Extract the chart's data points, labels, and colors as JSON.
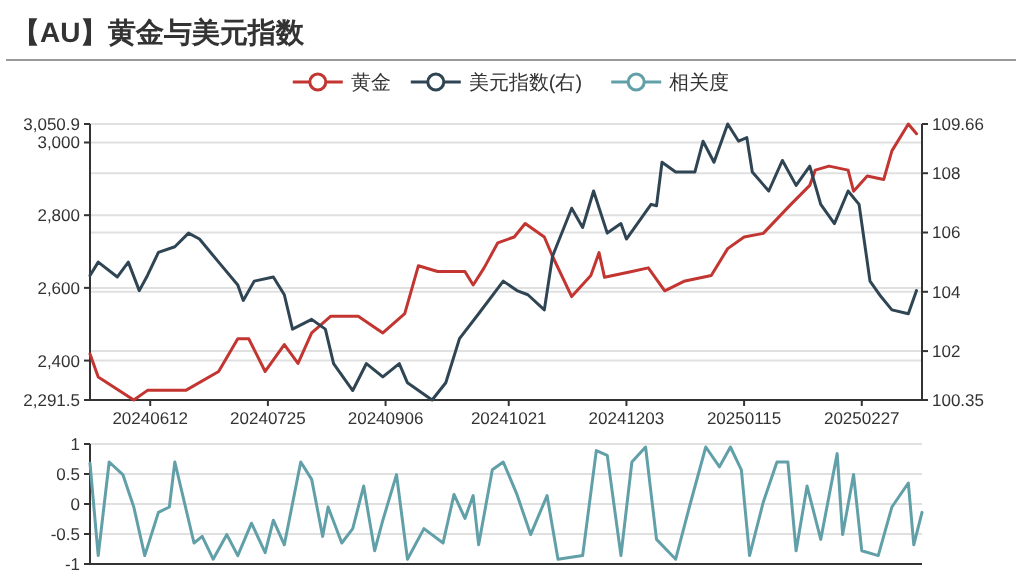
{
  "chart_data": [
    {
      "type": "line",
      "title": "【AU】黄金与美元指数",
      "legend": "top",
      "grid": "y",
      "xlim": [
        "2024-05-21",
        "2025-03-21"
      ],
      "xticks": [
        {
          "value": "2024-06-12",
          "label": "20240612"
        },
        {
          "value": "2024-07-25",
          "label": "20240725"
        },
        {
          "value": "2024-09-06",
          "label": "20240906"
        },
        {
          "value": "2024-10-21",
          "label": "20241021"
        },
        {
          "value": "2024-12-03",
          "label": "20241203"
        },
        {
          "value": "2025-01-15",
          "label": "20250115"
        },
        {
          "value": "2025-02-27",
          "label": "20250227"
        }
      ],
      "ylim": [
        2291.5,
        3050.9
      ],
      "yticks": [
        {
          "value": 2291.5,
          "label": "2,291.5"
        },
        {
          "value": 2400,
          "label": "2,400"
        },
        {
          "value": 2600,
          "label": "2,600"
        },
        {
          "value": 2800,
          "label": "2,800"
        },
        {
          "value": 3000,
          "label": "3,000"
        },
        {
          "value": 3050.9,
          "label": "3,050.9"
        }
      ],
      "y2lim": [
        100.35,
        109.66
      ],
      "y2ticks": [
        100.35,
        102,
        104,
        106,
        108,
        109.66
      ],
      "series": [
        {
          "name": "黄金",
          "color": "#c23531",
          "x": [
            "2024-05-21",
            "2024-05-24",
            "2024-06-06",
            "2024-06-11",
            "2024-06-25",
            "2024-07-07",
            "2024-07-14",
            "2024-07-18",
            "2024-07-24",
            "2024-07-31",
            "2024-08-05",
            "2024-08-10",
            "2024-08-17",
            "2024-08-27",
            "2024-09-05",
            "2024-09-13",
            "2024-09-18",
            "2024-09-25",
            "2024-10-05",
            "2024-10-08",
            "2024-10-12",
            "2024-10-17",
            "2024-10-23",
            "2024-10-27",
            "2024-11-03",
            "2024-11-06",
            "2024-11-13",
            "2024-11-20",
            "2024-11-23",
            "2024-11-25",
            "2024-12-05",
            "2024-12-11",
            "2024-12-17",
            "2024-12-24",
            "2025-01-03",
            "2025-01-09",
            "2025-01-15",
            "2025-01-22",
            "2025-02-01",
            "2025-02-08",
            "2025-02-10",
            "2025-02-15",
            "2025-02-22",
            "2025-02-24",
            "2025-03-01",
            "2025-03-07",
            "2025-03-10",
            "2025-03-16",
            "2025-03-19"
          ],
          "values": [
            2418,
            2355,
            2291.5,
            2318,
            2318,
            2370,
            2460,
            2460,
            2370,
            2444,
            2392,
            2476,
            2522,
            2522,
            2476,
            2529,
            2661,
            2645,
            2645,
            2608,
            2655,
            2724,
            2740,
            2777,
            2740,
            2687,
            2576,
            2634,
            2697,
            2629,
            2645,
            2655,
            2592,
            2618,
            2634,
            2708,
            2740,
            2750,
            2829,
            2882,
            2924,
            2935,
            2924,
            2866,
            2908,
            2898,
            2977,
            3050.9,
            3024
          ]
        },
        {
          "name": "美元指数(右)",
          "color": "#2f4554",
          "axis": "y2",
          "x": [
            "2024-05-21",
            "2024-05-24",
            "2024-05-31",
            "2024-06-04",
            "2024-06-08",
            "2024-06-11",
            "2024-06-15",
            "2024-06-21",
            "2024-06-26",
            "2024-06-30",
            "2024-07-07",
            "2024-07-14",
            "2024-07-16",
            "2024-07-20",
            "2024-07-27",
            "2024-07-31",
            "2024-08-03",
            "2024-08-10",
            "2024-08-15",
            "2024-08-18",
            "2024-08-25",
            "2024-08-30",
            "2024-09-05",
            "2024-09-11",
            "2024-09-14",
            "2024-09-23",
            "2024-09-28",
            "2024-10-03",
            "2024-10-10",
            "2024-10-19",
            "2024-10-24",
            "2024-10-28",
            "2024-11-03",
            "2024-11-06",
            "2024-11-13",
            "2024-11-17",
            "2024-11-21",
            "2024-11-26",
            "2024-12-01",
            "2024-12-03",
            "2024-12-12",
            "2024-12-14",
            "2024-12-16",
            "2024-12-21",
            "2024-12-28",
            "2024-12-31",
            "2025-01-04",
            "2025-01-09",
            "2025-01-13",
            "2025-01-16",
            "2025-01-18",
            "2025-01-24",
            "2025-01-29",
            "2025-02-03",
            "2025-02-08",
            "2025-02-12",
            "2025-02-17",
            "2025-02-22",
            "2025-02-26",
            "2025-03-02",
            "2025-03-06",
            "2025-03-10",
            "2025-03-16",
            "2025-03-19"
          ],
          "values": [
            104.55,
            105.0,
            104.5,
            105.0,
            104.04,
            104.55,
            105.33,
            105.52,
            105.98,
            105.78,
            105.0,
            104.23,
            103.71,
            104.36,
            104.5,
            103.9,
            102.74,
            103.07,
            102.74,
            101.58,
            100.67,
            101.58,
            101.13,
            101.58,
            100.93,
            100.35,
            100.93,
            102.42,
            103.26,
            104.36,
            104.04,
            103.9,
            103.39,
            105.2,
            106.82,
            106.17,
            107.4,
            105.98,
            106.3,
            105.78,
            106.95,
            106.9,
            108.37,
            108.04,
            108.04,
            109.08,
            108.37,
            109.66,
            109.08,
            109.2,
            108.04,
            107.4,
            108.43,
            107.59,
            108.24,
            106.95,
            106.3,
            107.4,
            106.95,
            104.36,
            103.84,
            103.39,
            103.26,
            104.04
          ]
        }
      ]
    },
    {
      "type": "line",
      "legend": "top",
      "grid": "y",
      "tick_labels": "y",
      "xlim": [
        "2024-05-21",
        "2025-03-21"
      ],
      "ylim": [
        -1,
        1
      ],
      "yticks": [
        -1,
        -0.5,
        0,
        0.5,
        1
      ],
      "series": [
        {
          "name": "相关度",
          "color": "#61a0a8",
          "x": [
            "2024-05-21",
            "2024-05-24",
            "2024-05-28",
            "2024-06-02",
            "2024-06-06",
            "2024-06-10",
            "2024-06-15",
            "2024-06-19",
            "2024-06-21",
            "2024-06-28",
            "2024-07-01",
            "2024-07-05",
            "2024-07-10",
            "2024-07-14",
            "2024-07-19",
            "2024-07-24",
            "2024-07-27",
            "2024-07-31",
            "2024-08-06",
            "2024-08-10",
            "2024-08-14",
            "2024-08-16",
            "2024-08-21",
            "2024-08-25",
            "2024-08-29",
            "2024-09-02",
            "2024-09-05",
            "2024-09-10",
            "2024-09-14",
            "2024-09-20",
            "2024-09-27",
            "2024-10-01",
            "2024-10-05",
            "2024-10-08",
            "2024-10-10",
            "2024-10-15",
            "2024-10-19",
            "2024-10-24",
            "2024-10-29",
            "2024-11-04",
            "2024-11-08",
            "2024-11-17",
            "2024-11-22",
            "2024-11-26",
            "2024-12-01",
            "2024-12-05",
            "2024-12-10",
            "2024-12-14",
            "2024-12-21",
            "2024-12-26",
            "2025-01-01",
            "2025-01-06",
            "2025-01-10",
            "2025-01-14",
            "2025-01-17",
            "2025-01-22",
            "2025-01-27",
            "2025-01-31",
            "2025-02-03",
            "2025-02-07",
            "2025-02-12",
            "2025-02-18",
            "2025-02-20",
            "2025-02-24",
            "2025-02-27",
            "2025-03-05",
            "2025-03-10",
            "2025-03-16",
            "2025-03-18",
            "2025-03-21"
          ],
          "values": [
            0.68,
            -0.86,
            0.7,
            0.49,
            -0.05,
            -0.86,
            -0.14,
            -0.05,
            0.7,
            -0.65,
            -0.54,
            -0.92,
            -0.51,
            -0.86,
            -0.32,
            -0.81,
            -0.27,
            -0.68,
            0.7,
            0.41,
            -0.54,
            -0.05,
            -0.65,
            -0.41,
            0.3,
            -0.78,
            -0.27,
            0.49,
            -0.92,
            -0.41,
            -0.65,
            0.16,
            -0.24,
            0.14,
            -0.68,
            0.57,
            0.7,
            0.16,
            -0.51,
            0.14,
            -0.92,
            -0.86,
            0.89,
            0.81,
            -0.86,
            0.7,
            0.95,
            -0.59,
            -0.92,
            -0.05,
            0.95,
            0.62,
            0.95,
            0.57,
            -0.86,
            0.03,
            0.7,
            0.7,
            -0.78,
            0.3,
            -0.59,
            0.84,
            -0.51,
            0.49,
            -0.78,
            -0.86,
            -0.05,
            0.35,
            -0.68,
            -0.14
          ]
        }
      ]
    }
  ]
}
